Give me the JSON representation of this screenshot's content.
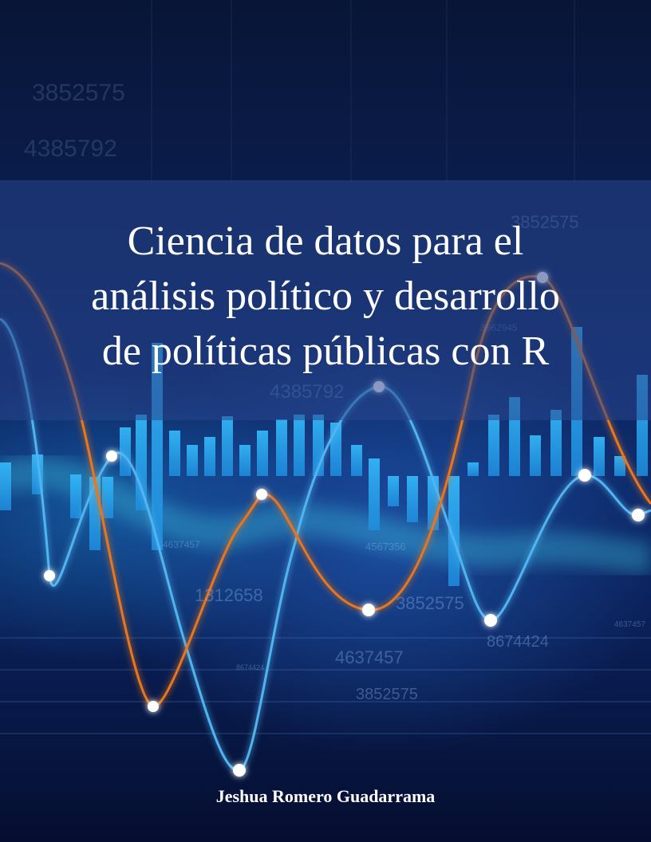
{
  "cover": {
    "title_lines": [
      "Ciencia de datos para el",
      "análisis político y desarrollo",
      "de políticas públicas con R"
    ],
    "author": "Jeshua Romero Guadarrama"
  },
  "background_numbers": [
    "3852575",
    "4385792",
    "4567356",
    "1312658",
    "3852575",
    "8674424",
    "4637457",
    "3852575",
    "4637457",
    "3962945",
    "4637457",
    "8674424",
    "3852575",
    "4385792"
  ],
  "colors": {
    "bar": "#2aa8f0",
    "blue_line": "#4fb4f0",
    "orange_line": "#e8761c",
    "marker": "#ffffff",
    "title_band": "#284688",
    "text": "#ffffff"
  }
}
